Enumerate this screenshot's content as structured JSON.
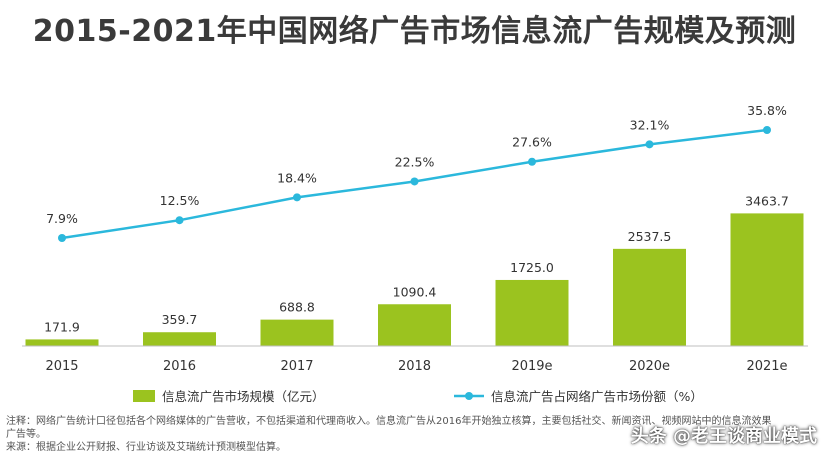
{
  "title": "2015-2021年中国网络广告市场信息流广告规模及预测",
  "chart_data": {
    "type": "bar",
    "categories": [
      "2015",
      "2016",
      "2017",
      "2018",
      "2019e",
      "2020e",
      "2021e"
    ],
    "series": [
      {
        "name": "信息流广告市场规模（亿元）",
        "type": "bar",
        "color": "#9bc31f",
        "values": [
          171.9,
          359.7,
          688.8,
          1090.4,
          1725.0,
          2537.5,
          3463.7
        ],
        "labels": [
          "171.9",
          "359.7",
          "688.8",
          "1090.4",
          "1725.0",
          "2537.5",
          "3463.7"
        ]
      },
      {
        "name": "信息流广告占网络广告市场份额（%）",
        "type": "line",
        "color": "#2bb8dc",
        "values": [
          7.9,
          12.5,
          18.4,
          22.5,
          27.6,
          32.1,
          35.8
        ],
        "labels": [
          "7.9%",
          "12.5%",
          "18.4%",
          "22.5%",
          "27.6%",
          "32.1%",
          "35.8%"
        ]
      }
    ],
    "bar_range": [
      0,
      3500
    ],
    "line_range": [
      0,
      40
    ],
    "grid": false,
    "legend_position": "bottom"
  },
  "notes": {
    "line1": "注释：网络广告统计口径包括各个网络媒体的广告营收，不包括渠道和代理商收入。信息流广告从2016年开始独立核算，主要包括社交、新闻资讯、视频网站中的信息流效果",
    "line2": "广告等。",
    "line3": "来源：根据企业公开财报、行业访谈及艾瑞统计预测模型估算。"
  },
  "watermark": "头条 @老王谈商业模式"
}
